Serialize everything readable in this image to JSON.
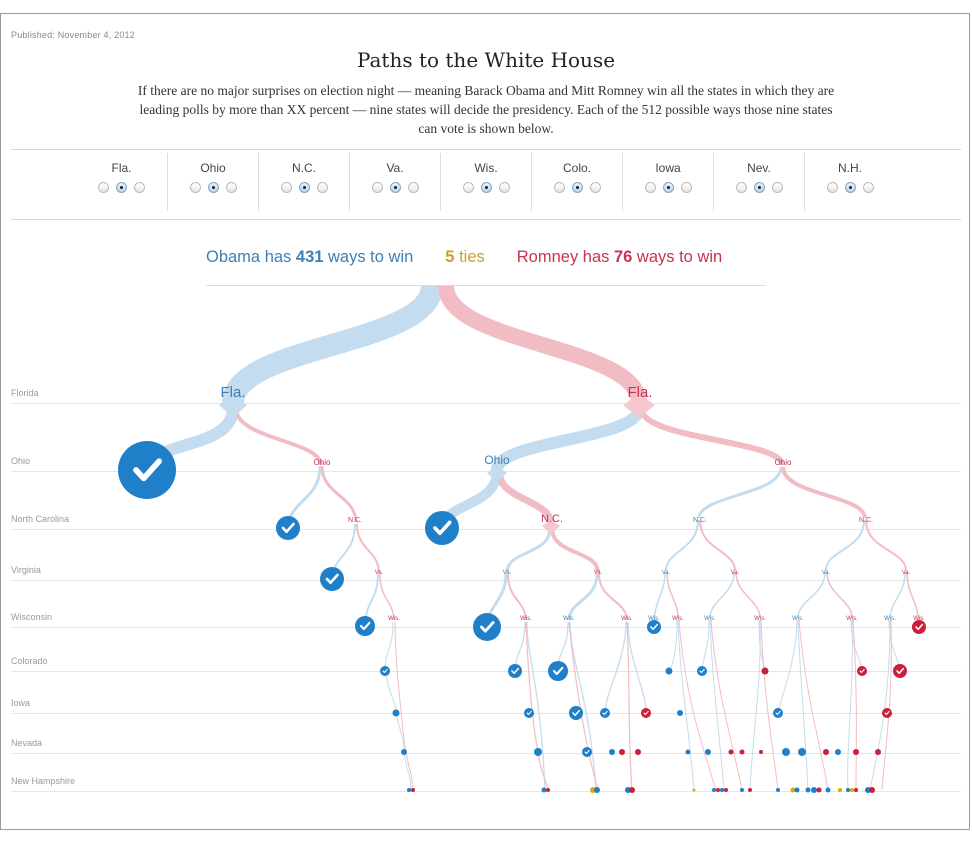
{
  "published": "Published: November 4, 2012",
  "title": "Paths to the White House",
  "intro": "If there are no major surprises on election night — meaning Barack Obama and Mitt Romney win all the states in which they are leading polls by more than XX percent — nine states will decide the presidency. Each of the 512 possible ways those nine states can vote is shown below.",
  "states": [
    {
      "label": "Fla."
    },
    {
      "label": "Ohio"
    },
    {
      "label": "N.C."
    },
    {
      "label": "Va."
    },
    {
      "label": "Wis."
    },
    {
      "label": "Colo."
    },
    {
      "label": "Iowa"
    },
    {
      "label": "Nev."
    },
    {
      "label": "N.H."
    }
  ],
  "summary": {
    "obama_prefix": "Obama has ",
    "obama_count": "431",
    "obama_suffix": " ways to win",
    "ties_count": "5",
    "ties_suffix": " ties",
    "romney_prefix": "Romney has ",
    "romney_count": "76",
    "romney_suffix": " ways to win"
  },
  "rows": [
    {
      "label": "Florida"
    },
    {
      "label": "Ohio"
    },
    {
      "label": "North Carolina"
    },
    {
      "label": "Virginia"
    },
    {
      "label": "Wisconsin"
    },
    {
      "label": "Colorado"
    },
    {
      "label": "Iowa"
    },
    {
      "label": "Nevada"
    },
    {
      "label": "New Hampshire"
    }
  ],
  "node_labels": {
    "fla": "Fla.",
    "ohio": "Ohio",
    "nc": "N.C.",
    "va": "Va.",
    "wis": "Wis."
  },
  "colors": {
    "obama": "#1f7fc9",
    "obama_light": "#c4dcef",
    "romney": "#cc1f3c",
    "romney_light": "#f2bcc5",
    "tie": "#e0a800"
  }
}
